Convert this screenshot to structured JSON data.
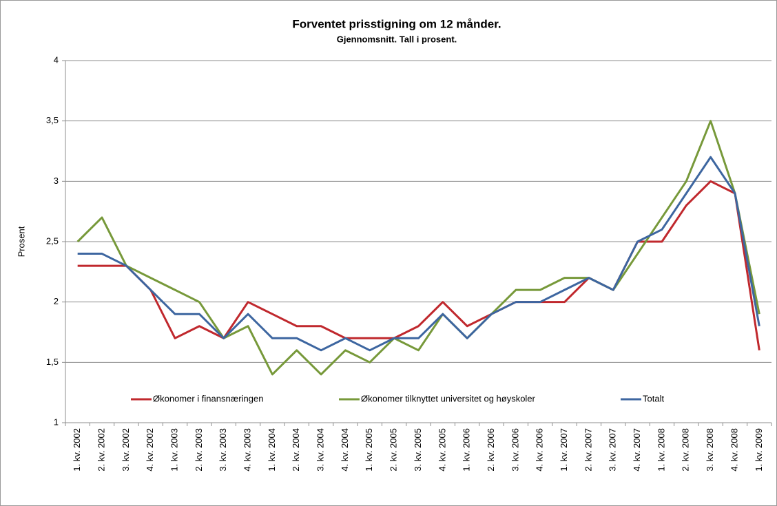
{
  "chart_data": {
    "type": "line",
    "title": "Forventet prisstigning om 12 månder.",
    "subtitle": "Gjennomsnitt. Tall i prosent.",
    "y_label": "Prosent",
    "categories": [
      "1. kv. 2002",
      "2. kv. 2002",
      "3. kv. 2002",
      "4. kv. 2002",
      "1. kv. 2003",
      "2. kv. 2003",
      "3. kv. 2003",
      "4. kv. 2003",
      "1. kv. 2004",
      "2. kv. 2004",
      "3. kv. 2004",
      "4. kv. 2004",
      "1. kv. 2005",
      "2. kv. 2005",
      "3. kv. 2005",
      "4. kv. 2005",
      "1. kv. 2006",
      "2. kv. 2006",
      "3. kv. 2006",
      "4. kv. 2006",
      "1. kv. 2007",
      "2. kv. 2007",
      "3. kv. 2007",
      "4. kv. 2007",
      "1. kv. 2008",
      "2. kv. 2008",
      "3. kv. 2008",
      "4. kv. 2008",
      "1. kv. 2009"
    ],
    "series": [
      {
        "name": "Økonomer i finansnæringen",
        "color": "#c0282d",
        "values": [
          2.3,
          2.3,
          2.3,
          2.1,
          1.7,
          1.8,
          1.7,
          2.0,
          1.9,
          1.8,
          1.8,
          1.7,
          1.7,
          1.7,
          1.8,
          2.0,
          1.8,
          1.9,
          2.0,
          2.0,
          2.0,
          2.2,
          2.1,
          2.5,
          2.5,
          2.8,
          3.0,
          2.9,
          1.6
        ]
      },
      {
        "name": "Økonomer tilknyttet  universitet  og høyskoler",
        "color": "#77993a",
        "values": [
          2.5,
          2.7,
          2.3,
          2.2,
          2.1,
          2.0,
          1.7,
          1.8,
          1.4,
          1.6,
          1.4,
          1.6,
          1.5,
          1.7,
          1.6,
          1.9,
          1.7,
          1.9,
          2.1,
          2.1,
          2.2,
          2.2,
          2.1,
          2.4,
          2.7,
          3.0,
          3.5,
          2.9,
          1.9
        ]
      },
      {
        "name": "Totalt",
        "color": "#3d66a0",
        "values": [
          2.4,
          2.4,
          2.3,
          2.1,
          1.9,
          1.9,
          1.7,
          1.9,
          1.7,
          1.7,
          1.6,
          1.7,
          1.6,
          1.7,
          1.7,
          1.9,
          1.7,
          1.9,
          2.0,
          2.0,
          2.1,
          2.2,
          2.1,
          2.5,
          2.6,
          2.9,
          3.2,
          2.9,
          1.8
        ]
      }
    ],
    "ylim": [
      1,
      4
    ],
    "yticks": [
      1,
      {
        "value": 1.5,
        "label": "1,5"
      },
      2,
      {
        "value": 2.5,
        "label": "2,5"
      },
      3,
      {
        "value": 3.5,
        "label": "3,5"
      },
      4
    ],
    "grid": true,
    "legend": "bottom"
  }
}
